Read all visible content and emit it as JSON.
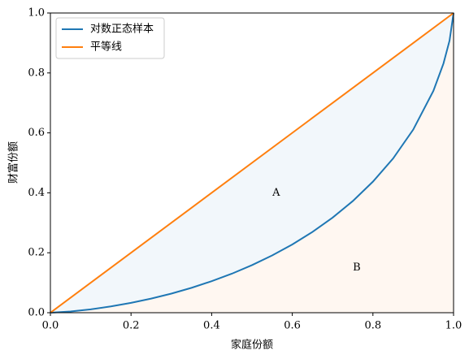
{
  "chart_data": {
    "type": "line",
    "xlabel": "家庭份额",
    "ylabel": "财富份额",
    "xlim": [
      0,
      1
    ],
    "ylim": [
      0,
      1
    ],
    "xticks": [
      {
        "value": 0,
        "label": "0.0"
      },
      0.2,
      0.4,
      0.6,
      0.8,
      {
        "value": 1,
        "label": "1.0"
      }
    ],
    "yticks": [
      {
        "value": 0,
        "label": "0.0"
      },
      0.2,
      0.4,
      0.6,
      0.8,
      {
        "value": 1,
        "label": "1.0"
      }
    ],
    "legend": "upper left",
    "series": [
      {
        "name": "对数正态样本",
        "color": "#1f77b4",
        "x": [
          0,
          0.05,
          0.1,
          0.15,
          0.2,
          0.25,
          0.3,
          0.35,
          0.4,
          0.45,
          0.5,
          0.55,
          0.6,
          0.65,
          0.7,
          0.75,
          0.8,
          0.85,
          0.9,
          0.95,
          0.975,
          0.99,
          1
        ],
        "values": [
          0,
          0.0041,
          0.0113,
          0.0209,
          0.0328,
          0.047,
          0.0637,
          0.083,
          0.1052,
          0.1301,
          0.1587,
          0.191,
          0.2276,
          0.2694,
          0.3172,
          0.3724,
          0.4373,
          0.5145,
          0.611,
          0.7402,
          0.8315,
          0.9076,
          1
        ]
      },
      {
        "name": "平等线",
        "color": "#ff7f0e",
        "x": [
          0,
          1
        ],
        "values": [
          0,
          1
        ]
      }
    ],
    "annotations": [
      {
        "text": "A",
        "x": 0.56,
        "y": 0.4
      },
      {
        "text": "B",
        "x": 0.76,
        "y": 0.15
      }
    ]
  }
}
